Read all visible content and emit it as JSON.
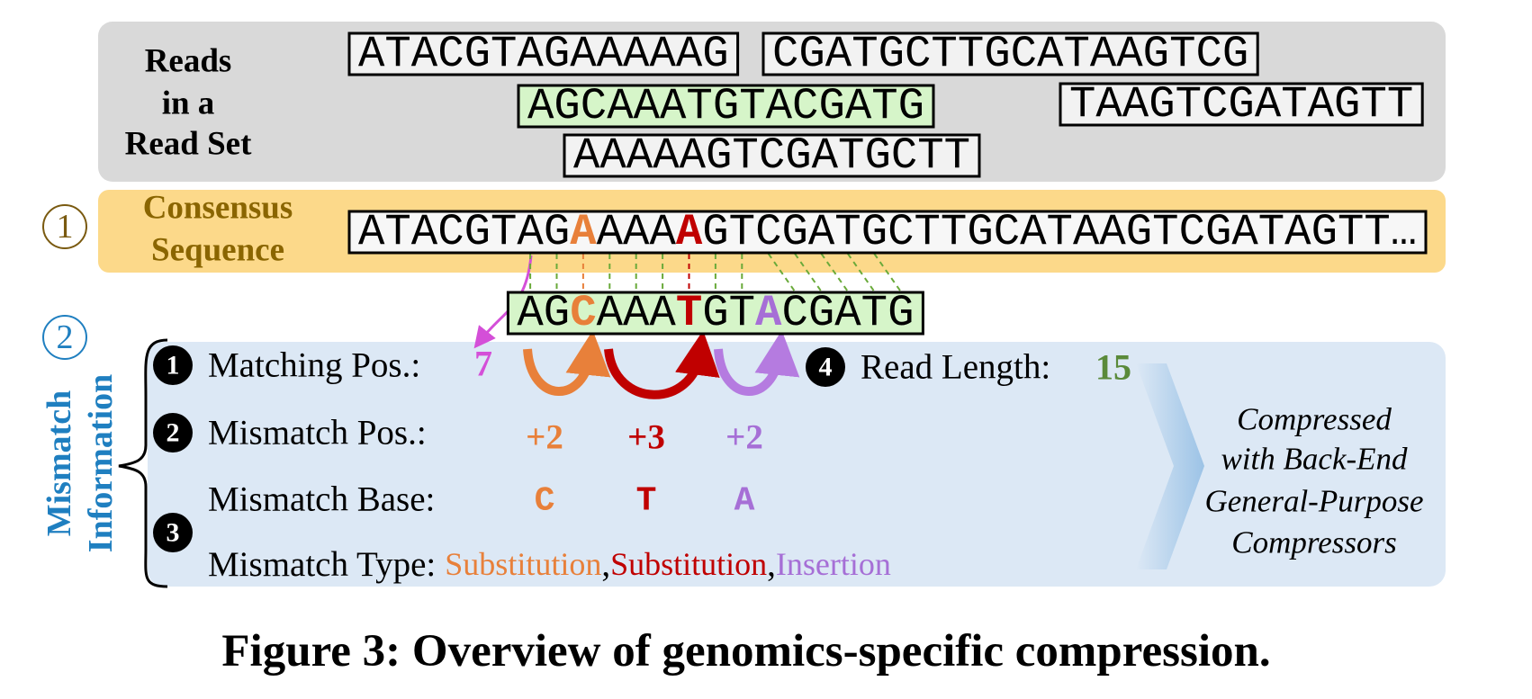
{
  "reads": {
    "title": [
      "Reads",
      "in a",
      "Read Set"
    ],
    "sequences": [
      {
        "text": "ATACGTAGAAAAAG",
        "fill": "#f2f2f2"
      },
      {
        "text": "CGATGCTTGCATAAGTCG",
        "fill": "#f2f2f2"
      },
      {
        "text": "AGCAAATGTACGATG",
        "fill": "#d6f5c9"
      },
      {
        "text": "TAAGTCGATAGTT",
        "fill": "#f2f2f2"
      },
      {
        "text": "AAAAAGTCGATGCTT",
        "fill": "#f2f2f2"
      }
    ]
  },
  "consensus": {
    "marker": "1",
    "title": [
      "Consensus",
      "Sequence"
    ],
    "segments": [
      {
        "text": "ATACGTAG"
      },
      {
        "text": "A",
        "color": "#e8803a"
      },
      {
        "text": "AAA"
      },
      {
        "text": "A",
        "color": "#c00000"
      },
      {
        "text": "GTCGATGCTTGCATAAGTCGATAGTT…"
      }
    ]
  },
  "aligned_read": {
    "segments": [
      {
        "text": "AG"
      },
      {
        "text": "C",
        "color": "#e8803a"
      },
      {
        "text": "AAA"
      },
      {
        "text": "T",
        "color": "#c00000"
      },
      {
        "text": "GT"
      },
      {
        "text": "A",
        "color": "#a66fd6"
      },
      {
        "text": "CGATG"
      }
    ]
  },
  "mismatch_info": {
    "marker": "2",
    "title": [
      "Mismatch",
      "Information"
    ],
    "colors": [
      "#e8803a",
      "#c00000",
      "#a66fd6"
    ],
    "matching_pos": {
      "number": "1",
      "label": "Matching Pos.:",
      "value": 7
    },
    "mismatch_pos": {
      "number": "2",
      "label": "Mismatch Pos.:",
      "values": [
        "+2",
        "+3",
        "+2"
      ]
    },
    "mismatch_base": {
      "label": "Mismatch Base:",
      "values": [
        "C",
        "T",
        "A"
      ]
    },
    "mismatch_type": {
      "number": "3",
      "label": "Mismatch Type:",
      "values": [
        "Substitution",
        "Substitution",
        "Insertion"
      ],
      "separator": ","
    },
    "read_length": {
      "number": "4",
      "label": "Read Length:",
      "value": 15
    }
  },
  "compressor_note": [
    "Compressed",
    "with Back-End",
    "General-Purpose",
    "Compressors"
  ],
  "caption": "Figure 3: Overview of genomics-specific compression."
}
